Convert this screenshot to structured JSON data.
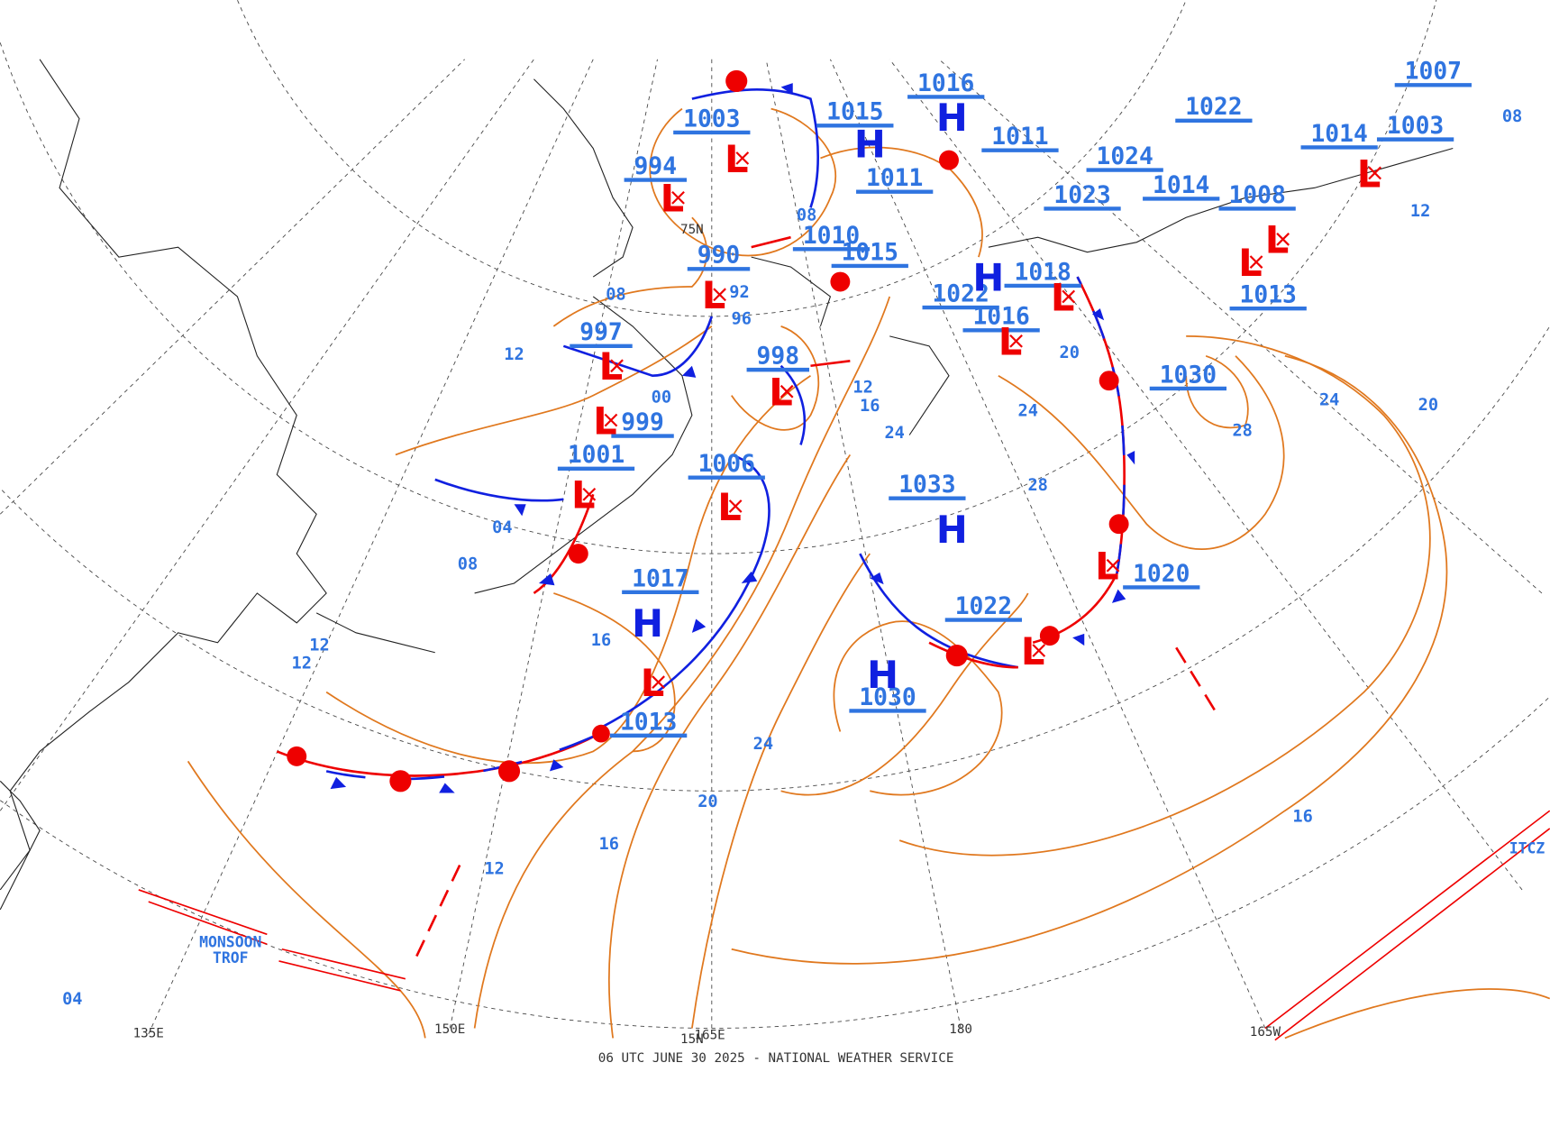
{
  "title": "06 UTC JUNE 30 2025 - NATIONAL WEATHER SERVICE",
  "pressure_centers": [
    {
      "symbol": "L",
      "pressure": "1003"
    },
    {
      "symbol": "L",
      "pressure": "994"
    },
    {
      "symbol": "L",
      "pressure": "990"
    },
    {
      "symbol": "L",
      "pressure": "997"
    },
    {
      "symbol": "L",
      "pressure": "999"
    },
    {
      "symbol": "L",
      "pressure": "1001"
    },
    {
      "symbol": "L",
      "pressure": "1006"
    },
    {
      "symbol": "L",
      "pressure": "998"
    },
    {
      "symbol": "H",
      "pressure": "1017"
    },
    {
      "symbol": "L",
      "pressure": "1013"
    },
    {
      "symbol": "H",
      "pressure": "1015"
    },
    {
      "symbol": "H",
      "pressure": "1016"
    },
    {
      "pressure": "1010"
    },
    {
      "pressure": "1015"
    },
    {
      "pressure": "1011"
    },
    {
      "pressure": "1011"
    },
    {
      "symbol": "H",
      "pressure": "1022"
    },
    {
      "symbol": "L",
      "pressure": "1018"
    },
    {
      "symbol": "L",
      "pressure": "1016"
    },
    {
      "symbol": "H",
      "pressure": "1033"
    },
    {
      "symbol": "L",
      "pressure": "1022"
    },
    {
      "symbol": "H",
      "pressure": "1030"
    },
    {
      "symbol": "L",
      "pressure": "1020"
    },
    {
      "pressure": "1030"
    },
    {
      "symbol": "L",
      "pressure": "1013"
    },
    {
      "symbol": "L",
      "pressure": "1008"
    },
    {
      "pressure": "1014"
    },
    {
      "pressure": "1024"
    },
    {
      "pressure": "1023"
    },
    {
      "pressure": "1022"
    },
    {
      "symbol": "L",
      "pressure": "1014"
    },
    {
      "pressure": "1007"
    },
    {
      "pressure": "1003"
    }
  ],
  "isobar_labels": [
    "24",
    "28",
    "28",
    "24",
    "20",
    "20",
    "16",
    "12",
    "24",
    "24",
    "20",
    "16",
    "12",
    "16",
    "12",
    "12",
    "04",
    "08",
    "04",
    "16",
    "12",
    "08",
    "12",
    "96",
    "92",
    "08",
    "00",
    "08"
  ],
  "grid_labels": [
    "150E",
    "165E",
    "180",
    "165W",
    "135E",
    "75N",
    "15N"
  ],
  "feature_labels": [
    "MONSOON",
    "TROF",
    "ITCZ"
  ]
}
